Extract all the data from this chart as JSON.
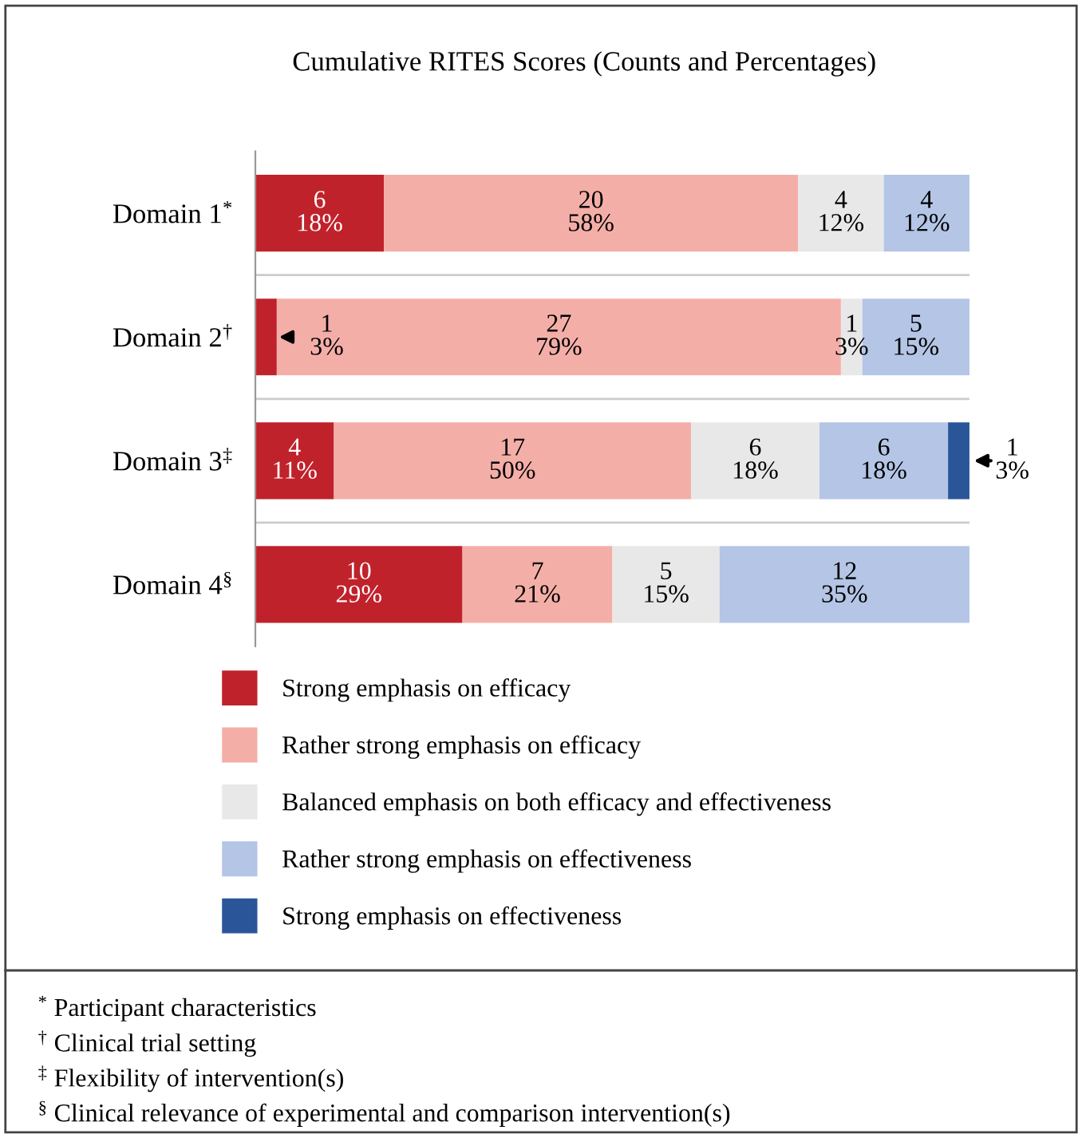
{
  "chart_data": {
    "type": "bar",
    "orientation": "horizontal",
    "stacked": true,
    "title": "Cumulative RITES Scores (Counts and Percentages)",
    "categories": [
      "Domain 1$^{*}$",
      "Domain 2$^{†}$",
      "Domain 3$^{‡}$",
      "Domain 4$^{§}$"
    ],
    "series": [
      {
        "name": "Strong emphasis on efficacy",
        "color": "#c0222b",
        "values": [
          18,
          3,
          11,
          29
        ],
        "value_labels": [
          "6\n18%",
          "1\n3%",
          "4\n11%",
          "10\n29%"
        ]
      },
      {
        "name": "Rather strong emphasis on efficacy",
        "color": "#f4aea8",
        "values": [
          58,
          79,
          50,
          21
        ],
        "value_labels": [
          "20\n58%",
          "27\n79%",
          "17\n50%",
          "7\n21%"
        ]
      },
      {
        "name": "Balanced emphasis on both efficacy and effectiveness",
        "color": "#e9e8e8",
        "values": [
          12,
          3,
          18,
          15
        ],
        "value_labels": [
          "4\n12%",
          "1\n3%",
          "6\n18%",
          "5\n15%"
        ]
      },
      {
        "name": "Rather strong emphasis on effectiveness",
        "color": "#b4c5e6",
        "values": [
          12,
          15,
          18,
          35
        ],
        "value_labels": [
          "4\n12%",
          "5\n15%",
          "6\n18%",
          "12\n35%"
        ]
      },
      {
        "name": "Strong emphasis on effectiveness",
        "color": "#2a5599",
        "values": [
          0,
          0,
          3,
          0
        ],
        "value_labels": [
          null,
          null,
          "1\n3%",
          null
        ]
      }
    ],
    "legend": "bottom",
    "annotations": [
      "$^{*}$ Participant characteristics",
      "$^{†}$ Clinical trial setting",
      "$^{‡}$ Flexibility of intervention(s)",
      "$^{§}$ Clinical relevance of experimental and comparison intervention(s)"
    ]
  }
}
